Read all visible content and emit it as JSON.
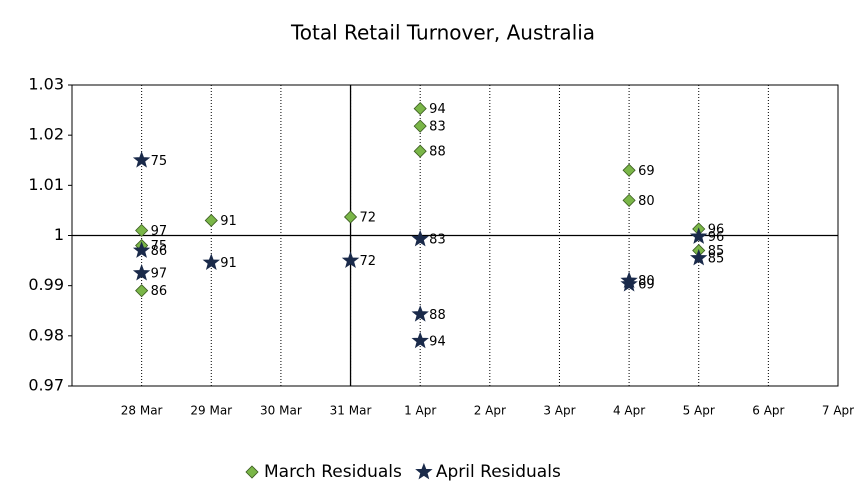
{
  "chart_data": {
    "type": "scatter",
    "title": "Total Retail Turnover, Australia",
    "categories": [
      "28 Mar",
      "29 Mar",
      "30 Mar",
      "31 Mar",
      "1 Apr",
      "2 Apr",
      "3 Apr",
      "4 Apr",
      "5 Apr",
      "6 Apr",
      "7 Apr"
    ],
    "ylim": [
      0.97,
      1.03
    ],
    "yticks": [
      1.03,
      1.02,
      1.01,
      1,
      0.99,
      0.98,
      0.97
    ],
    "grid": true,
    "legend": "bottom",
    "series": [
      {
        "name": "March Residuals",
        "color": "#7ab648",
        "marker": "diamond",
        "x": [
          "28 Mar",
          "28 Mar",
          "28 Mar",
          "29 Mar",
          "31 Mar",
          "1 Apr",
          "1 Apr",
          "1 Apr",
          "4 Apr",
          "4 Apr",
          "5 Apr",
          "5 Apr"
        ],
        "values": [
          1.001,
          0.998,
          0.989,
          1.003,
          1.0037,
          1.0253,
          1.0218,
          1.0168,
          1.013,
          1.007,
          1.0013,
          0.997
        ],
        "point_labels": [
          "97",
          "75",
          "86",
          "91",
          "72",
          "94",
          "83",
          "88",
          "69",
          "80",
          "96",
          "85"
        ]
      },
      {
        "name": "April Residuals",
        "color": "#1a2a4a",
        "marker": "star",
        "x": [
          "28 Mar",
          "28 Mar",
          "28 Mar",
          "29 Mar",
          "31 Mar",
          "1 Apr",
          "1 Apr",
          "1 Apr",
          "4 Apr",
          "4 Apr",
          "5 Apr",
          "5 Apr"
        ],
        "values": [
          1.015,
          0.997,
          0.9925,
          0.9946,
          0.995,
          0.9993,
          0.9843,
          0.979,
          0.991,
          0.9903,
          0.9998,
          0.9955
        ],
        "point_labels": [
          "75",
          "86",
          "97",
          "91",
          "72",
          "83",
          "88",
          "94",
          "80",
          "69",
          "96",
          "85"
        ]
      }
    ]
  }
}
